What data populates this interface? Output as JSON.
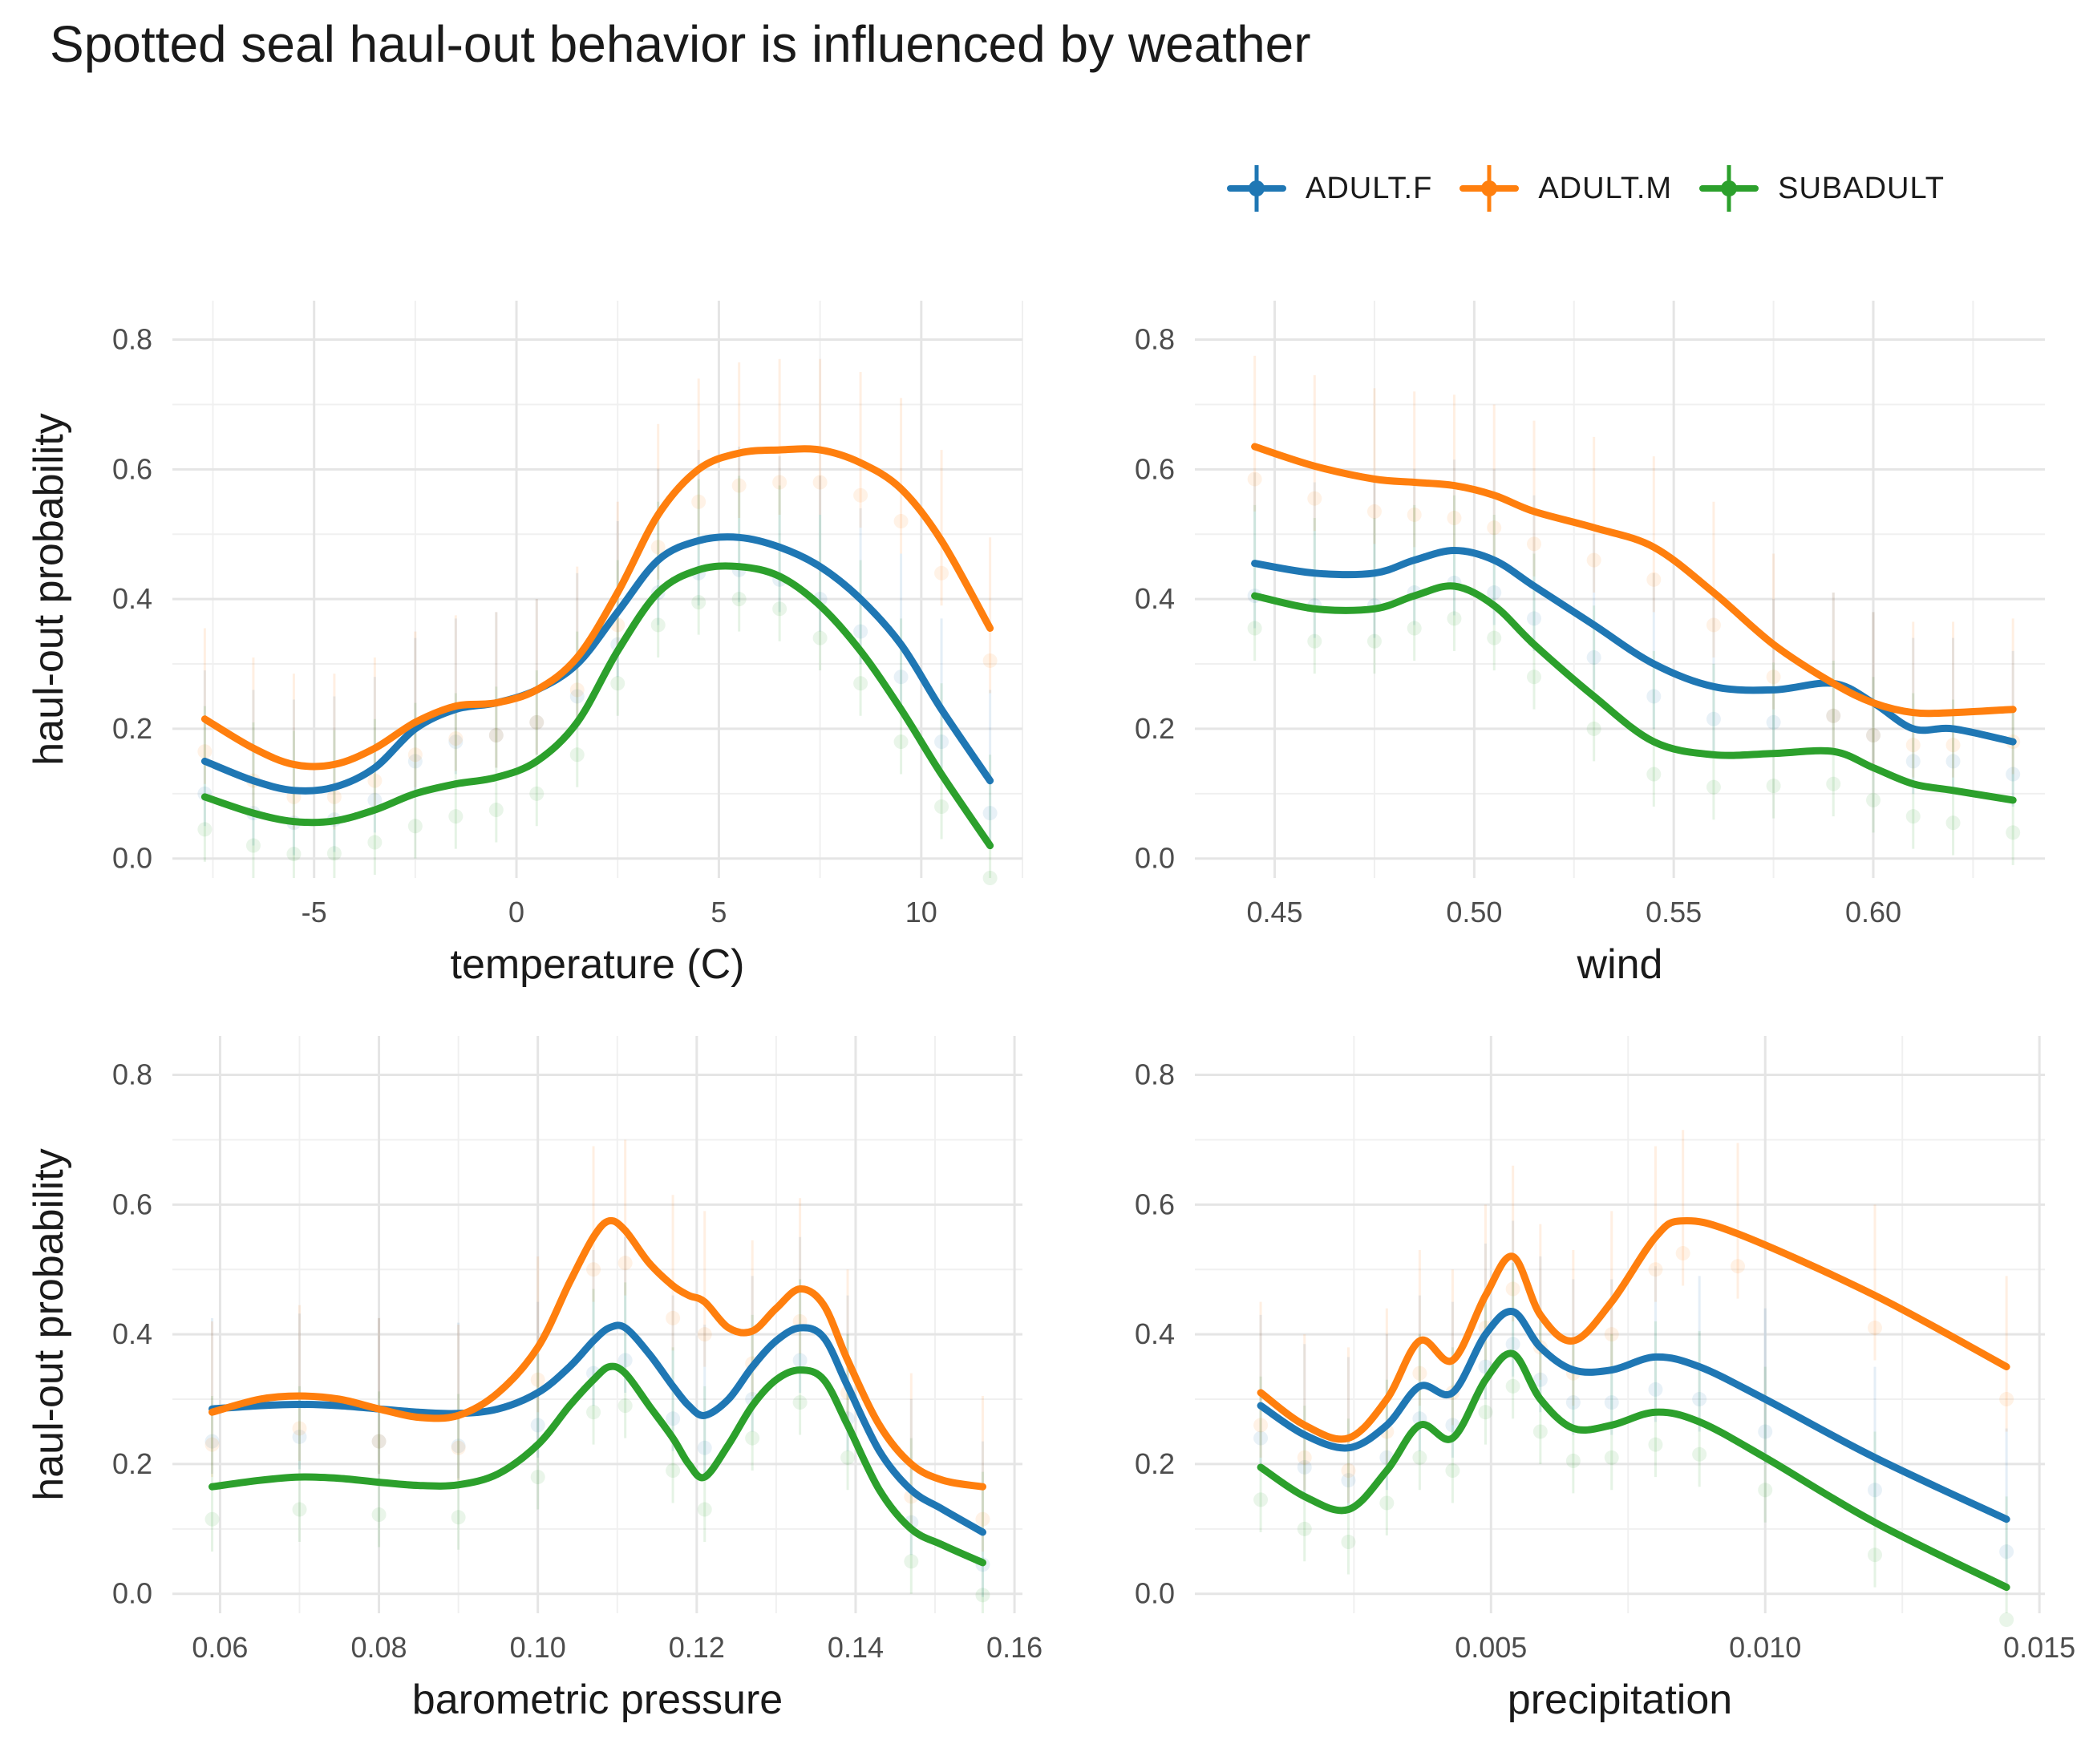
{
  "title": "Spotted seal haul-out behavior is influenced by weather",
  "legend": [
    {
      "label": "ADULT.F",
      "color": "#1f77b4"
    },
    {
      "label": "ADULT.M",
      "color": "#ff7f0e"
    },
    {
      "label": "SUBADULT",
      "color": "#2ca02c"
    }
  ],
  "chart_data": [
    {
      "type": "line",
      "xlabel": "temperature (C)",
      "ylabel": "haul-out probability",
      "xlim": [
        -8.5,
        12.5
      ],
      "ylim": [
        -0.03,
        0.86
      ],
      "xticks": [
        -5,
        0,
        5,
        10
      ],
      "xtick_labels": [
        "-5",
        "0",
        "5",
        "10"
      ],
      "yticks": [
        0.0,
        0.2,
        0.4,
        0.6,
        0.8
      ],
      "ytick_labels": [
        "0.0",
        "0.2",
        "0.4",
        "0.6",
        "0.8"
      ],
      "grid": true,
      "series": [
        {
          "name": "ADULT.F",
          "x": [
            -7.7,
            -6.5,
            -5.5,
            -4.5,
            -3.5,
            -2.5,
            -1.5,
            -0.5,
            0.5,
            1.5,
            2.5,
            3.5,
            4.5,
            5.5,
            6.5,
            7.5,
            8.5,
            9.5,
            10.5,
            11.7
          ],
          "y": [
            0.15,
            0.12,
            0.105,
            0.11,
            0.14,
            0.2,
            0.23,
            0.24,
            0.26,
            0.3,
            0.38,
            0.46,
            0.49,
            0.495,
            0.48,
            0.45,
            0.4,
            0.33,
            0.23,
            0.12
          ]
        },
        {
          "name": "ADULT.M",
          "x": [
            -7.7,
            -6.5,
            -5.5,
            -4.5,
            -3.5,
            -2.5,
            -1.5,
            -0.5,
            0.5,
            1.5,
            2.5,
            3.5,
            4.5,
            5.5,
            6.5,
            7.5,
            8.5,
            9.5,
            10.5,
            11.7
          ],
          "y": [
            0.215,
            0.17,
            0.145,
            0.145,
            0.17,
            0.21,
            0.235,
            0.24,
            0.26,
            0.31,
            0.41,
            0.53,
            0.6,
            0.625,
            0.63,
            0.63,
            0.61,
            0.57,
            0.49,
            0.355
          ]
        },
        {
          "name": "SUBADULT",
          "x": [
            -7.7,
            -6.5,
            -5.5,
            -4.5,
            -3.5,
            -2.5,
            -1.5,
            -0.5,
            0.5,
            1.5,
            2.5,
            3.5,
            4.5,
            5.5,
            6.5,
            7.5,
            8.5,
            9.5,
            10.5,
            11.7
          ],
          "y": [
            0.095,
            0.07,
            0.057,
            0.058,
            0.075,
            0.1,
            0.115,
            0.125,
            0.15,
            0.21,
            0.32,
            0.41,
            0.445,
            0.45,
            0.435,
            0.39,
            0.32,
            0.23,
            0.13,
            0.02
          ]
        }
      ]
    },
    {
      "type": "line",
      "xlabel": "wind",
      "ylabel": "",
      "xlim": [
        0.43,
        0.643
      ],
      "ylim": [
        -0.03,
        0.86
      ],
      "xticks": [
        0.45,
        0.5,
        0.55,
        0.6
      ],
      "xtick_labels": [
        "0.45",
        "0.50",
        "0.55",
        "0.60"
      ],
      "yticks": [
        0.0,
        0.2,
        0.4,
        0.6,
        0.8
      ],
      "ytick_labels": [
        "0.0",
        "0.2",
        "0.4",
        "0.6",
        "0.8"
      ],
      "grid": true,
      "series": [
        {
          "name": "ADULT.F",
          "x": [
            0.445,
            0.46,
            0.475,
            0.485,
            0.495,
            0.505,
            0.515,
            0.53,
            0.545,
            0.56,
            0.575,
            0.59,
            0.6,
            0.61,
            0.62,
            0.635
          ],
          "y": [
            0.455,
            0.44,
            0.44,
            0.46,
            0.475,
            0.46,
            0.42,
            0.36,
            0.3,
            0.265,
            0.26,
            0.27,
            0.24,
            0.2,
            0.2,
            0.18
          ]
        },
        {
          "name": "ADULT.M",
          "x": [
            0.445,
            0.46,
            0.475,
            0.485,
            0.495,
            0.505,
            0.515,
            0.53,
            0.545,
            0.56,
            0.575,
            0.59,
            0.6,
            0.61,
            0.62,
            0.635
          ],
          "y": [
            0.635,
            0.605,
            0.585,
            0.58,
            0.575,
            0.56,
            0.535,
            0.51,
            0.48,
            0.41,
            0.33,
            0.27,
            0.24,
            0.225,
            0.225,
            0.23
          ]
        },
        {
          "name": "SUBADULT",
          "x": [
            0.445,
            0.46,
            0.475,
            0.485,
            0.495,
            0.505,
            0.515,
            0.53,
            0.545,
            0.56,
            0.575,
            0.59,
            0.6,
            0.61,
            0.62,
            0.635
          ],
          "y": [
            0.405,
            0.385,
            0.385,
            0.405,
            0.42,
            0.39,
            0.33,
            0.25,
            0.18,
            0.16,
            0.162,
            0.165,
            0.14,
            0.115,
            0.105,
            0.09
          ]
        }
      ]
    },
    {
      "type": "line",
      "xlabel": "barometric pressure",
      "ylabel": "haul-out probability",
      "xlim": [
        0.054,
        0.161
      ],
      "ylim": [
        -0.03,
        0.86
      ],
      "xticks": [
        0.06,
        0.08,
        0.1,
        0.12,
        0.14,
        0.16
      ],
      "xtick_labels": [
        "0.06",
        "0.08",
        "0.10",
        "0.12",
        "0.14",
        "0.16"
      ],
      "yticks": [
        0.0,
        0.2,
        0.4,
        0.6,
        0.8
      ],
      "ytick_labels": [
        "0.0",
        "0.2",
        "0.4",
        "0.6",
        "0.8"
      ],
      "grid": true,
      "series": [
        {
          "name": "ADULT.F",
          "x": [
            0.059,
            0.065,
            0.07,
            0.075,
            0.08,
            0.085,
            0.09,
            0.095,
            0.1,
            0.104,
            0.107,
            0.109,
            0.111,
            0.114,
            0.117,
            0.119,
            0.121,
            0.124,
            0.127,
            0.13,
            0.133,
            0.136,
            0.139,
            0.143,
            0.147,
            0.151,
            0.156
          ],
          "y": [
            0.285,
            0.29,
            0.292,
            0.29,
            0.285,
            0.28,
            0.278,
            0.285,
            0.31,
            0.35,
            0.39,
            0.41,
            0.41,
            0.37,
            0.32,
            0.29,
            0.275,
            0.3,
            0.35,
            0.39,
            0.41,
            0.395,
            0.32,
            0.22,
            0.16,
            0.13,
            0.095
          ]
        },
        {
          "name": "ADULT.M",
          "x": [
            0.059,
            0.065,
            0.07,
            0.075,
            0.08,
            0.085,
            0.09,
            0.095,
            0.1,
            0.104,
            0.107,
            0.109,
            0.111,
            0.114,
            0.117,
            0.119,
            0.121,
            0.124,
            0.127,
            0.13,
            0.133,
            0.136,
            0.139,
            0.143,
            0.147,
            0.151,
            0.156
          ],
          "y": [
            0.28,
            0.3,
            0.305,
            0.3,
            0.285,
            0.272,
            0.275,
            0.31,
            0.38,
            0.48,
            0.55,
            0.575,
            0.56,
            0.51,
            0.475,
            0.46,
            0.45,
            0.41,
            0.405,
            0.44,
            0.47,
            0.445,
            0.36,
            0.26,
            0.2,
            0.175,
            0.165
          ]
        },
        {
          "name": "SUBADULT",
          "x": [
            0.059,
            0.065,
            0.07,
            0.075,
            0.08,
            0.085,
            0.09,
            0.095,
            0.1,
            0.104,
            0.107,
            0.109,
            0.111,
            0.114,
            0.117,
            0.119,
            0.121,
            0.124,
            0.127,
            0.13,
            0.133,
            0.136,
            0.139,
            0.143,
            0.147,
            0.151,
            0.156
          ],
          "y": [
            0.165,
            0.175,
            0.18,
            0.178,
            0.172,
            0.167,
            0.168,
            0.185,
            0.23,
            0.29,
            0.33,
            0.35,
            0.34,
            0.29,
            0.24,
            0.2,
            0.18,
            0.23,
            0.29,
            0.33,
            0.345,
            0.33,
            0.26,
            0.16,
            0.1,
            0.075,
            0.048
          ]
        }
      ]
    },
    {
      "type": "line",
      "xlabel": "precipitation",
      "ylabel": "",
      "xlim": [
        -0.0004,
        0.0151
      ],
      "ylim": [
        -0.03,
        0.86
      ],
      "xticks": [
        0.005,
        0.01,
        0.015
      ],
      "xtick_labels": [
        "0.005",
        "0.010",
        "0.015"
      ],
      "yticks": [
        0.0,
        0.2,
        0.4,
        0.6,
        0.8
      ],
      "ytick_labels": [
        "0.0",
        "0.2",
        "0.4",
        "0.6",
        "0.8"
      ],
      "grid": true,
      "series": [
        {
          "name": "ADULT.F",
          "x": [
            0.0008,
            0.0016,
            0.0024,
            0.0031,
            0.0037,
            0.0043,
            0.0049,
            0.0054,
            0.0059,
            0.0065,
            0.0072,
            0.008,
            0.0088,
            0.01,
            0.012,
            0.0144
          ],
          "y": [
            0.29,
            0.245,
            0.225,
            0.26,
            0.32,
            0.31,
            0.4,
            0.435,
            0.38,
            0.345,
            0.345,
            0.365,
            0.35,
            0.3,
            0.21,
            0.115
          ]
        },
        {
          "name": "ADULT.M",
          "x": [
            0.0008,
            0.0016,
            0.0024,
            0.0031,
            0.0037,
            0.0043,
            0.0049,
            0.0054,
            0.0059,
            0.0065,
            0.0072,
            0.008,
            0.0085,
            0.0095,
            0.012,
            0.0144
          ],
          "y": [
            0.31,
            0.26,
            0.24,
            0.3,
            0.39,
            0.36,
            0.46,
            0.52,
            0.43,
            0.39,
            0.45,
            0.55,
            0.575,
            0.555,
            0.46,
            0.35
          ]
        },
        {
          "name": "SUBADULT",
          "x": [
            0.0008,
            0.0016,
            0.0024,
            0.0031,
            0.0037,
            0.0043,
            0.0049,
            0.0054,
            0.0059,
            0.0065,
            0.0072,
            0.008,
            0.0088,
            0.01,
            0.012,
            0.0144
          ],
          "y": [
            0.195,
            0.15,
            0.13,
            0.19,
            0.26,
            0.24,
            0.33,
            0.37,
            0.3,
            0.255,
            0.26,
            0.28,
            0.265,
            0.21,
            0.11,
            0.01
          ]
        }
      ]
    }
  ]
}
